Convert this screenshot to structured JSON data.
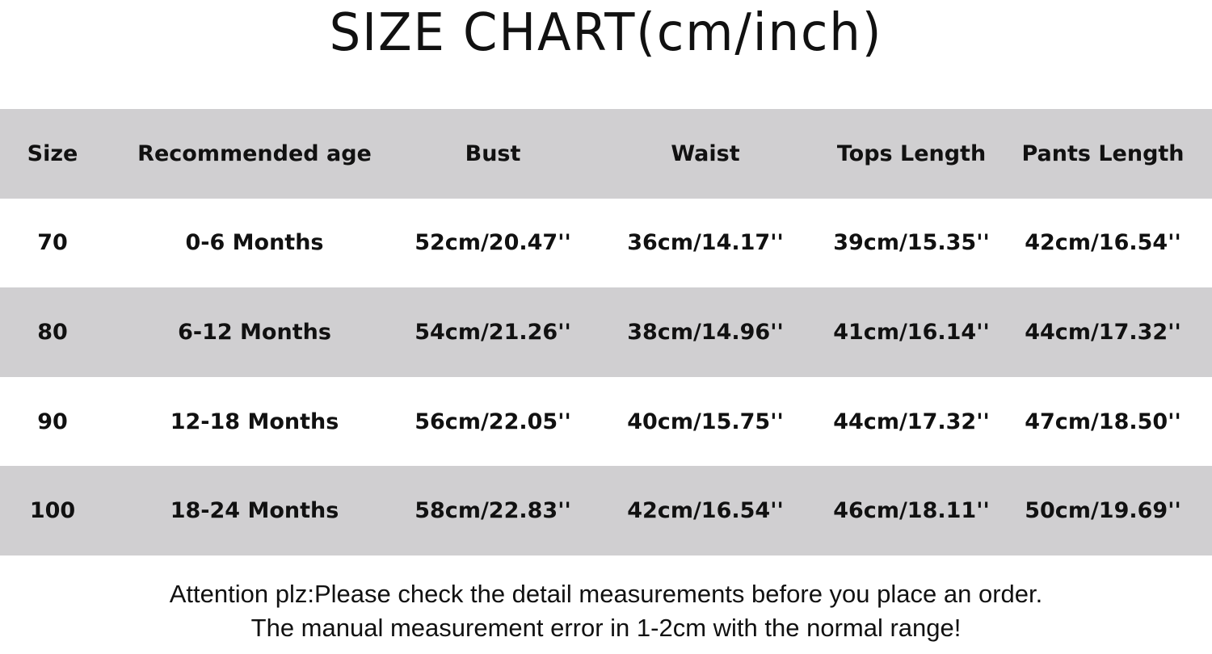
{
  "title": "SIZE CHART(cm/inch)",
  "table": {
    "headers": [
      "Size",
      "Recommended age",
      "Bust",
      "Waist",
      "Tops Length",
      "Pants Length"
    ],
    "rows": [
      [
        "70",
        "0-6 Months",
        "52cm/20.47''",
        "36cm/14.17''",
        "39cm/15.35''",
        "42cm/16.54''"
      ],
      [
        "80",
        "6-12 Months",
        "54cm/21.26''",
        "38cm/14.96''",
        "41cm/16.14''",
        "44cm/17.32''"
      ],
      [
        "90",
        "12-18 Months",
        "56cm/22.05''",
        "40cm/15.75''",
        "44cm/17.32''",
        "47cm/18.50''"
      ],
      [
        "100",
        "18-24 Months",
        "58cm/22.83''",
        "42cm/16.54''",
        "46cm/18.11''",
        "50cm/19.69''"
      ]
    ]
  },
  "notes": [
    "Attention plz:Please check the detail measurements before you place an order.",
    "The manual measurement error in 1-2cm with the normal range!"
  ],
  "colors": {
    "stripe": "#d0cfd1",
    "background": "#ffffff",
    "text": "#111111"
  }
}
